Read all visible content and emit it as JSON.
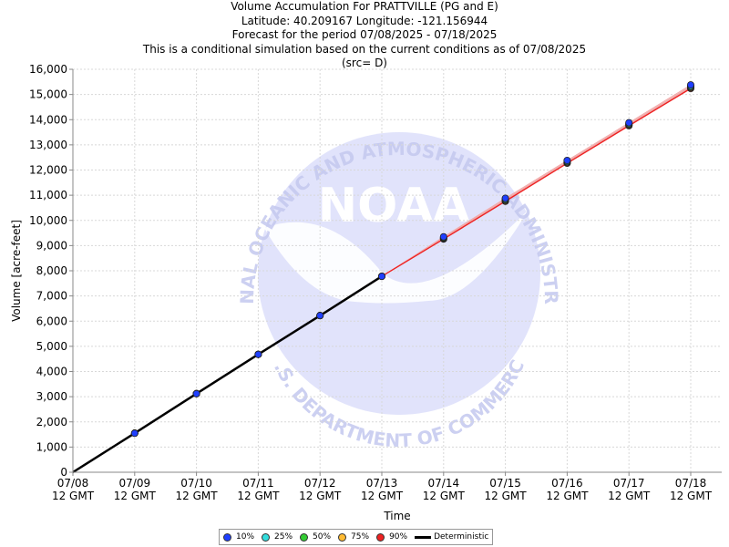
{
  "titles": {
    "line1": "Volume Accumulation For PRATTVILLE (PG and E)",
    "line2": "Latitude: 40.209167 Longitude: -121.156944",
    "line3": "Forecast for the period 07/08/2025 - 07/18/2025",
    "line4": "This is a conditional simulation based on the current conditions as of 07/08/2025",
    "line5": "(src= D)"
  },
  "watermark": {
    "top_arc": "NATIONAL OCEANIC AND ATMOSPHERIC ADMINISTRATION",
    "bottom_arc": "U.S. DEPARTMENT OF COMMERCE",
    "logo": "NOAA"
  },
  "colors": {
    "p10": "#1f3fff",
    "p25": "#33dddd",
    "p50": "#33cc33",
    "p75": "#ffbb33",
    "p90": "#ee2222",
    "deterministic": "#000000",
    "grid": "#d8d8d8",
    "watermark": "#cfd3f5"
  },
  "legend": [
    {
      "label": "10%",
      "color": "#1f3fff",
      "type": "dot"
    },
    {
      "label": "25%",
      "color": "#33dddd",
      "type": "dot"
    },
    {
      "label": "50%",
      "color": "#33cc33",
      "type": "dot"
    },
    {
      "label": "75%",
      "color": "#ffbb33",
      "type": "dot"
    },
    {
      "label": "90%",
      "color": "#ee2222",
      "type": "dot"
    },
    {
      "label": "Deterministic",
      "color": "#000000",
      "type": "line"
    }
  ],
  "chart_data": {
    "type": "line",
    "title": "Volume Accumulation For PRATTVILLE (PG and E)",
    "xlabel": "Time",
    "ylabel": "Volume [acre-feet]",
    "x_tick_labels": [
      [
        "07/08",
        "12 GMT"
      ],
      [
        "07/09",
        "12 GMT"
      ],
      [
        "07/10",
        "12 GMT"
      ],
      [
        "07/11",
        "12 GMT"
      ],
      [
        "07/12",
        "12 GMT"
      ],
      [
        "07/13",
        "12 GMT"
      ],
      [
        "07/14",
        "12 GMT"
      ],
      [
        "07/15",
        "12 GMT"
      ],
      [
        "07/16",
        "12 GMT"
      ],
      [
        "07/17",
        "12 GMT"
      ],
      [
        "07/18",
        "12 GMT"
      ]
    ],
    "y_ticks": [
      0,
      1000,
      2000,
      3000,
      4000,
      5000,
      6000,
      7000,
      8000,
      9000,
      10000,
      11000,
      12000,
      13000,
      14000,
      15000,
      16000
    ],
    "y_tick_labels": [
      "0",
      "1,000",
      "2,000",
      "3,000",
      "4,000",
      "5,000",
      "6,000",
      "7,000",
      "8,000",
      "9,000",
      "10,000",
      "11,000",
      "12,000",
      "13,000",
      "14,000",
      "15,000",
      "16,000"
    ],
    "ylim": [
      0,
      16000
    ],
    "x": [
      "07/08 12 GMT",
      "07/09 12 GMT",
      "07/10 12 GMT",
      "07/11 12 GMT",
      "07/12 12 GMT",
      "07/13 12 GMT",
      "07/14 12 GMT",
      "07/15 12 GMT",
      "07/16 12 GMT",
      "07/17 12 GMT",
      "07/18 12 GMT"
    ],
    "xlim": [
      "07/08 12 GMT",
      "07/18 12 GMT"
    ],
    "grid": true,
    "legend_position": "bottom",
    "deterministic": [
      0,
      1550,
      3120,
      4680,
      6220,
      7780,
      null,
      null,
      null,
      null,
      null
    ],
    "series": [
      {
        "name": "10%",
        "color": "#1f3fff",
        "values": [
          0,
          1550,
          3120,
          4680,
          6220,
          7780,
          9350,
          10880,
          12380,
          13880,
          15380
        ]
      },
      {
        "name": "25%",
        "color": "#33dddd",
        "values": [
          0,
          1550,
          3120,
          4680,
          6220,
          7780,
          9320,
          10840,
          12340,
          13840,
          15330
        ]
      },
      {
        "name": "50%",
        "color": "#33cc33",
        "values": [
          0,
          1550,
          3120,
          4680,
          6220,
          7780,
          9300,
          10810,
          12320,
          13810,
          15300
        ]
      },
      {
        "name": "75%",
        "color": "#ffbb33",
        "values": [
          0,
          1550,
          3120,
          4680,
          6220,
          7780,
          9280,
          10780,
          12290,
          13780,
          15270
        ]
      },
      {
        "name": "90%",
        "color": "#ee2222",
        "values": [
          0,
          1550,
          3120,
          4680,
          6220,
          7780,
          9260,
          10760,
          12270,
          13760,
          15240
        ]
      }
    ]
  }
}
